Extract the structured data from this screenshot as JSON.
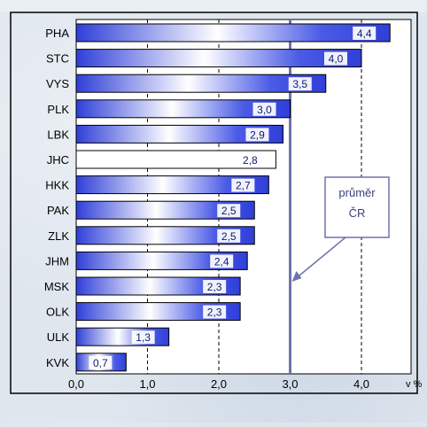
{
  "chart_data": {
    "type": "bar",
    "orientation": "horizontal",
    "title": "",
    "xlabel": "",
    "ylabel": "",
    "unit_label": "v %",
    "categories": [
      "PHA",
      "STC",
      "VYS",
      "PLK",
      "LBK",
      "JHC",
      "HKK",
      "PAK",
      "ZLK",
      "JHM",
      "MSK",
      "OLK",
      "ULK",
      "KVK"
    ],
    "values": [
      4.4,
      4.0,
      3.5,
      3.0,
      2.9,
      2.8,
      2.7,
      2.5,
      2.5,
      2.4,
      2.3,
      2.3,
      1.3,
      0.7
    ],
    "value_labels": [
      "4,4",
      "4,0",
      "3,5",
      "3,0",
      "2,9",
      "2,8",
      "2,7",
      "2,5",
      "2,5",
      "2,4",
      "2,3",
      "2,3",
      "1,3",
      "0,7"
    ],
    "highlighted_category": "JHC",
    "xlim": [
      0,
      5.0
    ],
    "xticks": [
      0,
      1,
      2,
      3,
      4
    ],
    "xtick_labels": [
      "0,0",
      "1,0",
      "2,0",
      "3,0",
      "4,0"
    ],
    "dashed_gridlines_at": [
      1,
      2,
      4
    ],
    "reference_line": {
      "value": 3.0
    },
    "annotation": {
      "line1": "průměr",
      "line2": "ČR"
    },
    "colors": {
      "bar_dark": "#2f3fd8",
      "bar_light": "#ffffff",
      "highlight_bar": "#ffffff",
      "reference_line": "#6e73ad",
      "axis_text": "#000000",
      "value_text": "#0d1a6e"
    }
  }
}
